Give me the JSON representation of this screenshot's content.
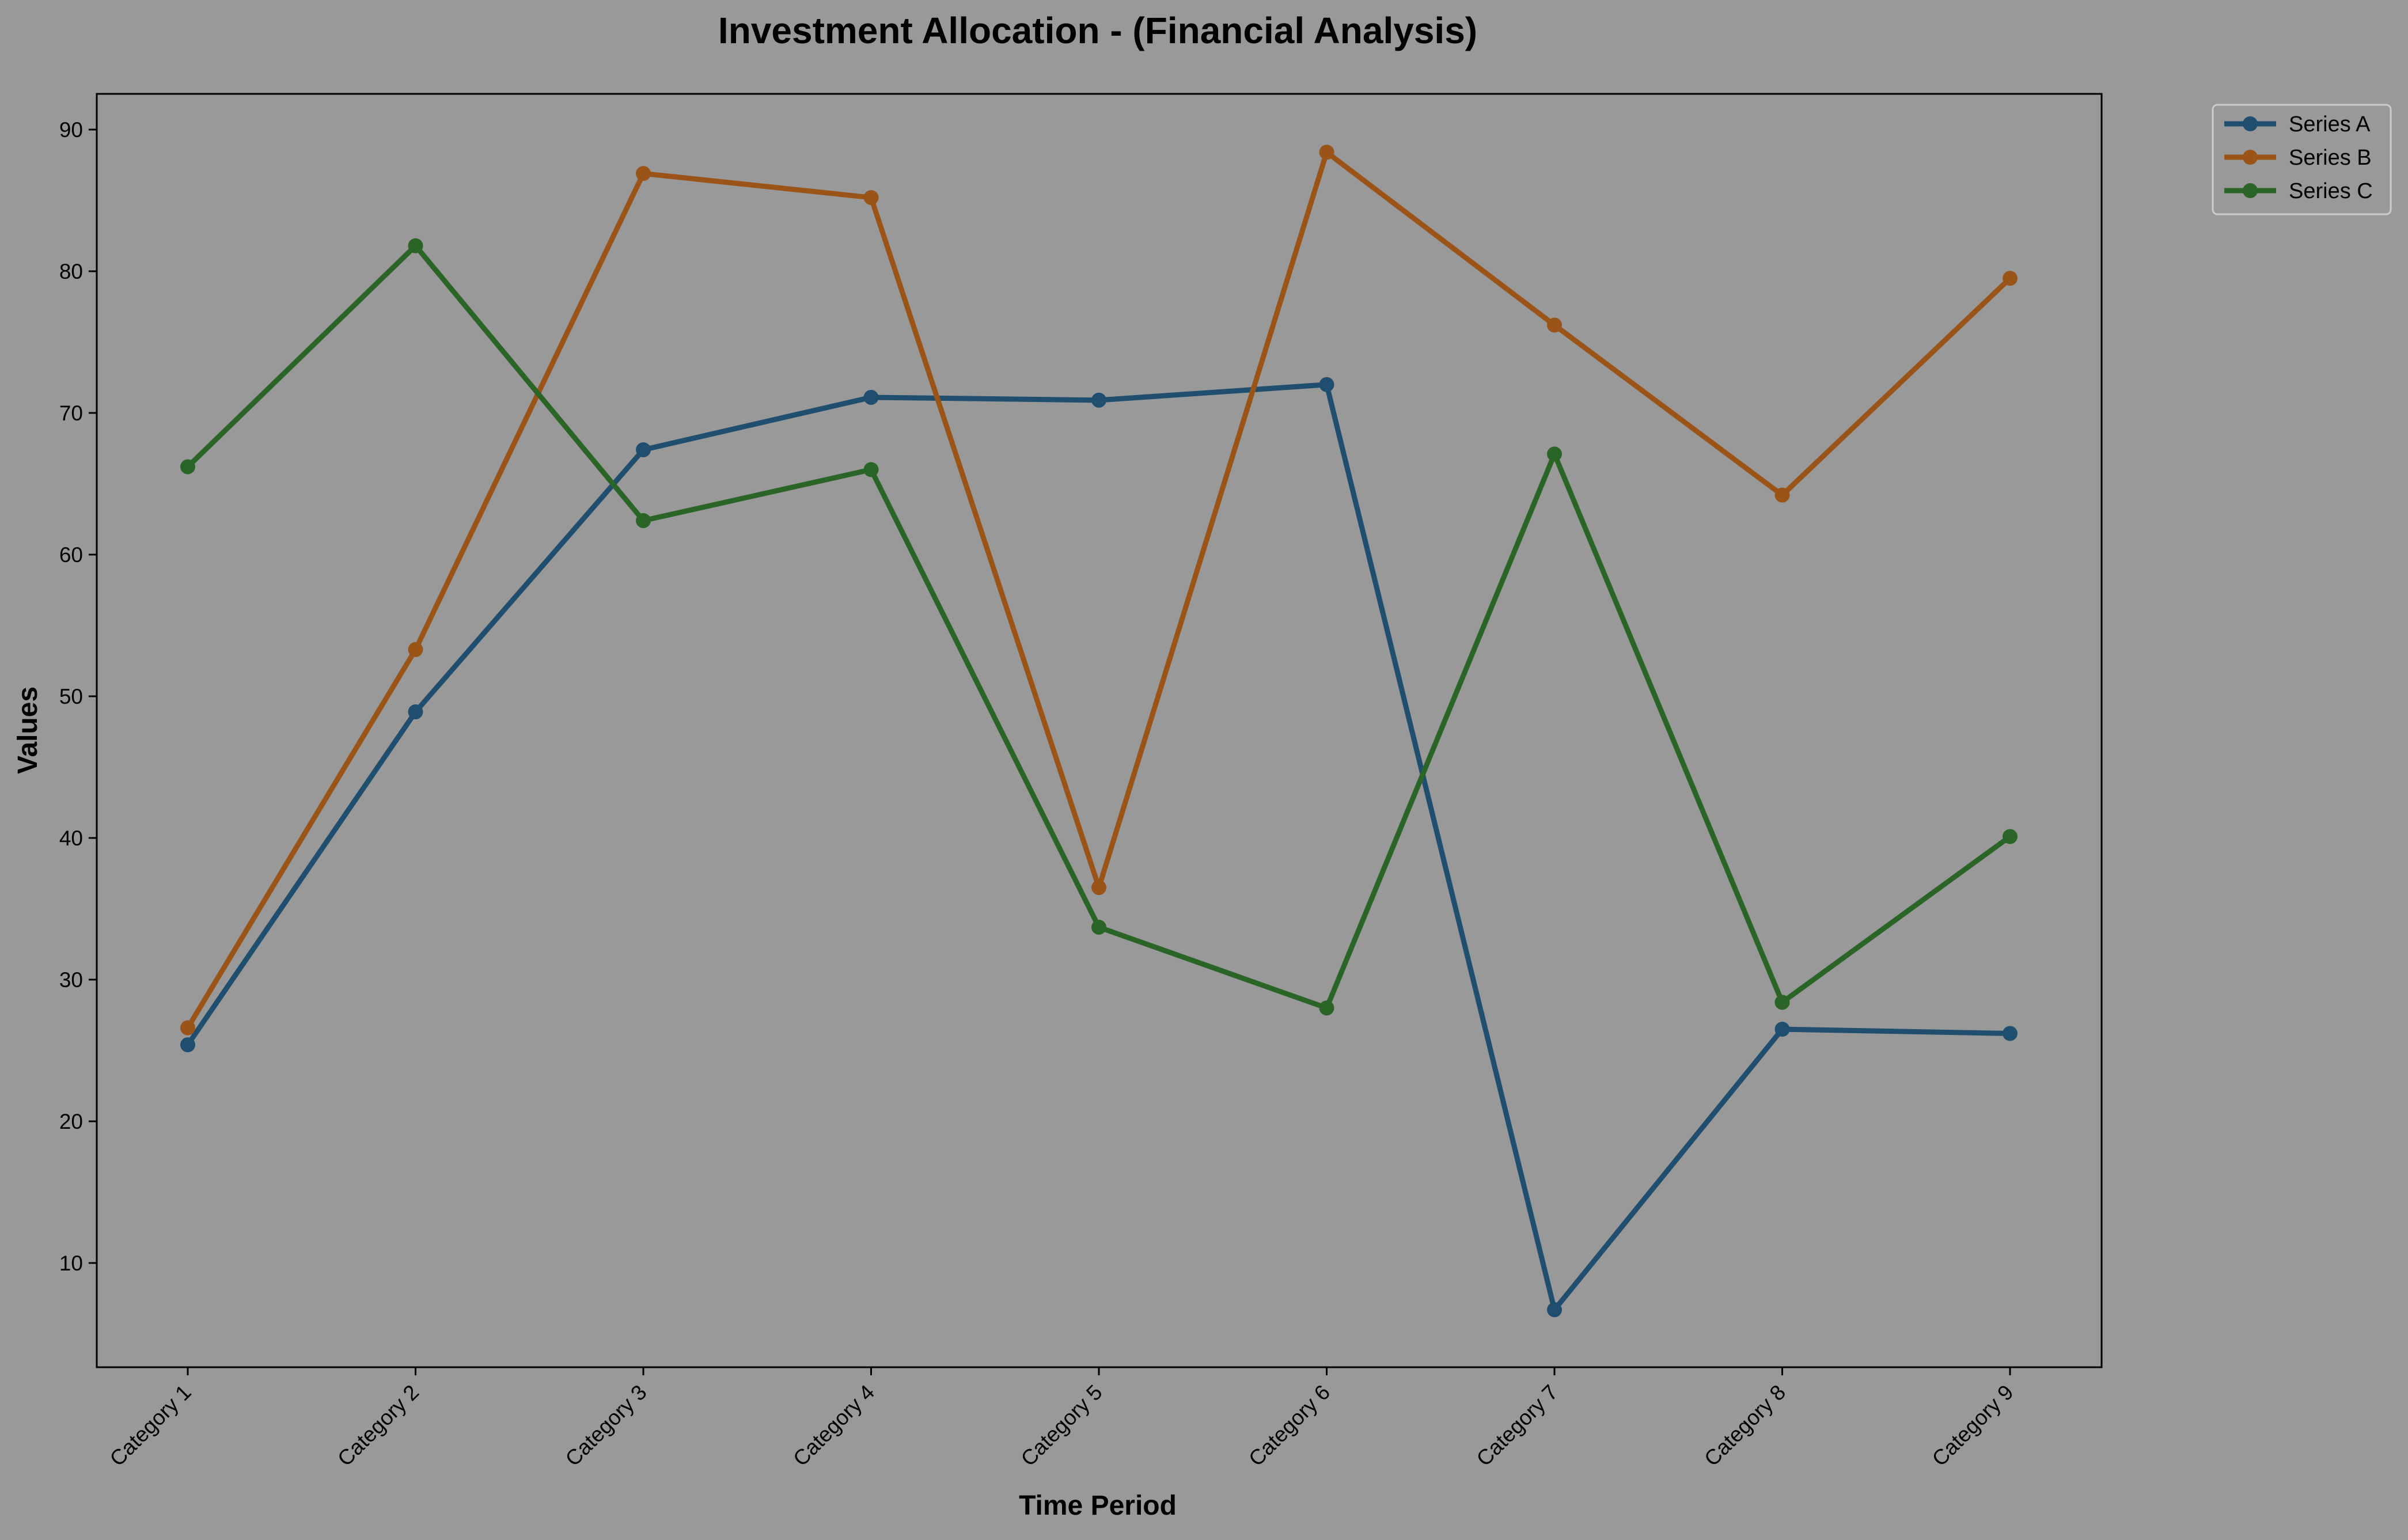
{
  "chart_data": {
    "type": "line",
    "title": "Investment Allocation - (Financial Analysis)",
    "xlabel": "Time Period",
    "ylabel": "Values",
    "categories": [
      "Category 1",
      "Category 2",
      "Category 3",
      "Category 4",
      "Category 5",
      "Category 6",
      "Category 7",
      "Category 8",
      "Category 9"
    ],
    "ylim": [
      3,
      93
    ],
    "yticks": [
      10,
      20,
      30,
      40,
      50,
      60,
      70,
      80,
      90
    ],
    "grid": false,
    "legend_position": "outside top-right",
    "series": [
      {
        "name": "Series A",
        "color": "#1f4e6e",
        "values": [
          25.4,
          48.9,
          67.4,
          71.1,
          70.9,
          72.0,
          6.7,
          26.5,
          26.2
        ]
      },
      {
        "name": "Series B",
        "color": "#9a5418",
        "values": [
          26.6,
          53.3,
          86.9,
          85.2,
          36.5,
          88.4,
          76.2,
          64.2,
          79.5
        ]
      },
      {
        "name": "Series C",
        "color": "#2a6527",
        "values": [
          66.2,
          81.8,
          62.4,
          66.0,
          33.7,
          28.0,
          67.1,
          28.4,
          40.1
        ]
      }
    ]
  }
}
